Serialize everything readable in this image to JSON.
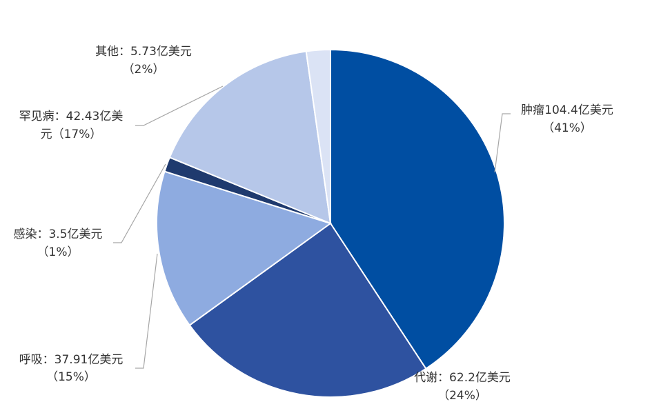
{
  "chart_data": {
    "type": "pie",
    "title": "",
    "unit": "亿美元",
    "slices": [
      {
        "name": "肿瘤",
        "value": 104.4,
        "percent": "41%",
        "label_line1": "肿瘤104.4亿美元",
        "label_line2": "（41%）",
        "color": "#004ea2"
      },
      {
        "name": "代谢",
        "value": 62.2,
        "percent": "24%",
        "label_line1": "代谢：62.2亿美元",
        "label_line2": "（24%）",
        "color": "#2e52a0"
      },
      {
        "name": "呼吸",
        "value": 37.91,
        "percent": "15%",
        "label_line1": "呼吸：37.91亿美元",
        "label_line2": "（15%）",
        "color": "#8eabe0"
      },
      {
        "name": "感染",
        "value": 3.5,
        "percent": "1%",
        "label_line1": "感染：3.5亿美元",
        "label_line2": "（1%）",
        "color": "#1f3a6e"
      },
      {
        "name": "罕见病",
        "value": 42.43,
        "percent": "17%",
        "label_line1": "罕见病：42.43亿美",
        "label_line2": "元（17%）",
        "color": "#b6c7e9"
      },
      {
        "name": "其他",
        "value": 5.73,
        "percent": "2%",
        "label_line1": "其他：5.73亿美元",
        "label_line2": "（2%）",
        "color": "#dbe3f5"
      }
    ]
  }
}
